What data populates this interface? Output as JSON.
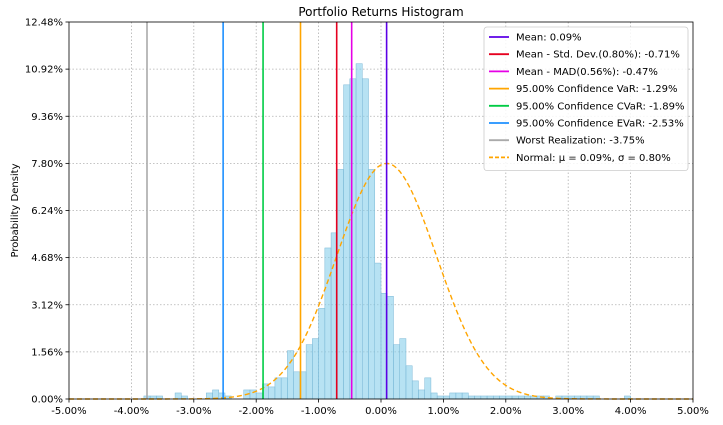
{
  "chart_data": {
    "type": "bar",
    "title": "Portfolio Returns Histogram",
    "ylabel": "Probability Density",
    "xlabel": "",
    "xlim": [
      -5.0,
      5.0
    ],
    "ylim": [
      0.0,
      12.48
    ],
    "x_ticks": [
      "-5.00%",
      "-4.00%",
      "-3.00%",
      "-2.00%",
      "-1.00%",
      "0.00%",
      "1.00%",
      "2.00%",
      "3.00%",
      "4.00%",
      "5.00%"
    ],
    "y_ticks": [
      "0.00%",
      "1.56%",
      "3.12%",
      "4.68%",
      "6.24%",
      "7.80%",
      "9.36%",
      "10.92%",
      "12.48%"
    ],
    "grid": true,
    "legend_position": "top-right",
    "histogram": {
      "bin_width": 0.1,
      "bins_start": [
        -3.8,
        -3.7,
        -3.6,
        -3.3,
        -3.2,
        -2.8,
        -2.7,
        -2.6,
        -2.5,
        -2.2,
        -2.1,
        -2.0,
        -1.9,
        -1.8,
        -1.7,
        -1.6,
        -1.5,
        -1.4,
        -1.3,
        -1.2,
        -1.1,
        -1.0,
        -0.9,
        -0.8,
        -0.7,
        -0.6,
        -0.5,
        -0.4,
        -0.3,
        -0.2,
        -0.1,
        0.0,
        0.1,
        0.2,
        0.3,
        0.4,
        0.5,
        0.6,
        0.7,
        0.8,
        0.9,
        1.0,
        1.1,
        1.2,
        1.3,
        1.4,
        1.5,
        1.6,
        1.7,
        1.8,
        1.9,
        2.0,
        2.1,
        2.2,
        2.3,
        2.4,
        2.5,
        2.6,
        2.8,
        2.9,
        3.0,
        3.1,
        3.2,
        3.3,
        3.4,
        3.9
      ],
      "values": [
        0.1,
        0.1,
        0.1,
        0.2,
        0.1,
        0.2,
        0.3,
        0.2,
        0.1,
        0.3,
        0.3,
        0.2,
        0.5,
        0.4,
        0.7,
        0.7,
        1.6,
        0.9,
        0.9,
        1.8,
        2.0,
        3.0,
        5.0,
        5.5,
        7.6,
        10.4,
        10.6,
        11.1,
        10.6,
        7.6,
        4.5,
        3.5,
        3.4,
        1.8,
        2.0,
        1.1,
        0.6,
        0.3,
        0.7,
        0.2,
        0.1,
        0.1,
        0.2,
        0.2,
        0.2,
        0.1,
        0.1,
        0.1,
        0.1,
        0.1,
        0.1,
        0.1,
        0.1,
        0.1,
        0.1,
        0.1,
        0.1,
        0.1,
        0.1,
        0.1,
        0.1,
        0.1,
        0.1,
        0.1,
        0.1,
        0.1
      ],
      "color": "#87ceeb"
    },
    "series": [
      {
        "name": "Mean: 0.09%",
        "type": "vline",
        "x": 0.09,
        "color": "#5c00e6"
      },
      {
        "name": "Mean - Std. Dev.(0.80%): -0.71%",
        "type": "vline",
        "x": -0.71,
        "color": "#e6001f"
      },
      {
        "name": "Mean - MAD(0.56%): -0.47%",
        "type": "vline",
        "x": -0.47,
        "color": "#e600e6"
      },
      {
        "name": "95.00% Confidence VaR: -1.29%",
        "type": "vline",
        "x": -1.29,
        "color": "#ffa500"
      },
      {
        "name": "95.00% Confidence CVaR: -1.89%",
        "type": "vline",
        "x": -1.89,
        "color": "#00cc44"
      },
      {
        "name": "95.00% Confidence EVaR: -2.53%",
        "type": "vline",
        "x": -2.53,
        "color": "#1e90ff"
      },
      {
        "name": "Worst Realization: -3.75%",
        "type": "vline",
        "x": -3.75,
        "color": "#aaaaaa"
      },
      {
        "name": "Normal: μ = 0.09%, σ = 0.80%",
        "type": "normal_curve",
        "mu": 0.09,
        "sigma": 0.8,
        "color": "#ffa500"
      }
    ]
  }
}
